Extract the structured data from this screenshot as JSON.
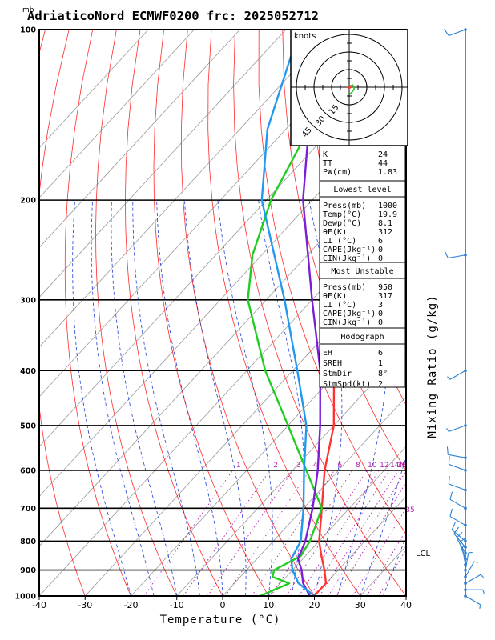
{
  "header": {
    "unit_mb": "mb",
    "title": "AdriaticoNord ECMWF0200 frc: 2025052712"
  },
  "axes": {
    "xlabel": "Temperature (°C)",
    "right_label": "Mixing Ratio (g/kg)",
    "pressure_ticks": [
      "100",
      "200",
      "300",
      "400",
      "500",
      "600",
      "700",
      "800",
      "900",
      "1000"
    ],
    "temp_ticks": [
      "-40",
      "-30",
      "-20",
      "-10",
      "0",
      "10",
      "20",
      "30",
      "40"
    ],
    "mixing_ratio_labels": [
      "1",
      "2",
      "3",
      "4",
      "6",
      "8",
      "10",
      "12",
      "14",
      "16",
      "18",
      "20",
      "25",
      "30",
      "35"
    ]
  },
  "hodograph": {
    "units": "knots",
    "ring_labels": [
      "15",
      "30",
      "45"
    ]
  },
  "indices": {
    "top": [
      {
        "label": "K",
        "value": "24"
      },
      {
        "label": "TT",
        "value": "44"
      },
      {
        "label": "PW(cm)",
        "value": "1.83"
      }
    ],
    "lowest": {
      "title": "Lowest level",
      "rows": [
        {
          "label": "Press(mb)",
          "value": "1000"
        },
        {
          "label": "Temp(°C)",
          "value": "19.9"
        },
        {
          "label": "Dewp(°C)",
          "value": "8.1"
        },
        {
          "label": "θE(K)",
          "value": "312"
        },
        {
          "label": "LI (°C)",
          "value": "6"
        },
        {
          "label": "CAPE(Jkg⁻¹)",
          "value": "0"
        },
        {
          "label": "CIN(Jkg⁻¹)",
          "value": "0"
        }
      ]
    },
    "unstable": {
      "title": "Most Unstable",
      "rows": [
        {
          "label": "Press(mb)",
          "value": "950"
        },
        {
          "label": "θE(K)",
          "value": "317"
        },
        {
          "label": "LI (°C)",
          "value": "3"
        },
        {
          "label": "CAPE(Jkg⁻¹)",
          "value": "0"
        },
        {
          "label": "CIN(Jkg⁻¹)",
          "value": "0"
        }
      ]
    },
    "hodo": {
      "title": "Hodograph",
      "rows": [
        {
          "label": "EH",
          "value": "6"
        },
        {
          "label": "SREH",
          "value": "1"
        },
        {
          "label": "StmDir",
          "value": "8°"
        },
        {
          "label": "StmSpd(kt)",
          "value": "2"
        }
      ]
    }
  },
  "lcl_label": "LCL",
  "colors": {
    "temperature": "#ff3333",
    "dewpoint": "#22cc22",
    "parcel": "#7a1fd6",
    "wetbulb": "#2299ee",
    "dry_adiabat": "#ff2a2a",
    "moist_adiabat": "#1f3fd6",
    "mixing_ratio": "#b020b0",
    "isotherm": "#999999"
  },
  "chart_data": {
    "type": "line",
    "title": "AdriaticoNord ECMWF0200 frc: 2025052712",
    "xlabel": "Temperature (°C)",
    "ylabel": "mb",
    "xlim": [
      -40,
      40
    ],
    "ylim": [
      1000,
      100
    ],
    "y_scale": "log",
    "series": [
      {
        "key": "temperature",
        "points": [
          [
            1000,
            19.9
          ],
          [
            950,
            20
          ],
          [
            900,
            17
          ],
          [
            850,
            13.5
          ],
          [
            800,
            10
          ],
          [
            700,
            4
          ],
          [
            600,
            -3
          ],
          [
            500,
            -10
          ],
          [
            400,
            -21
          ],
          [
            300,
            -33
          ],
          [
            250,
            -38
          ],
          [
            200,
            -45
          ],
          [
            150,
            -52
          ],
          [
            100,
            -59
          ]
        ]
      },
      {
        "key": "dewpoint",
        "points": [
          [
            1000,
            8.1
          ],
          [
            950,
            12
          ],
          [
            925,
            7
          ],
          [
            900,
            6
          ],
          [
            850,
            9
          ],
          [
            800,
            8
          ],
          [
            700,
            4
          ],
          [
            600,
            -7
          ],
          [
            500,
            -20
          ],
          [
            400,
            -36
          ],
          [
            300,
            -54
          ],
          [
            250,
            -62
          ],
          [
            200,
            -69
          ],
          [
            150,
            -75
          ],
          [
            100,
            -80
          ]
        ]
      },
      {
        "key": "parcel",
        "points": [
          [
            1000,
            19
          ],
          [
            950,
            15
          ],
          [
            900,
            12
          ],
          [
            860,
            9
          ],
          [
            800,
            7
          ],
          [
            700,
            2
          ],
          [
            600,
            -4.5
          ],
          [
            500,
            -13
          ],
          [
            400,
            -24
          ],
          [
            300,
            -40
          ],
          [
            200,
            -62
          ],
          [
            150,
            -75
          ],
          [
            100,
            -90
          ]
        ]
      },
      {
        "key": "wetbulb",
        "points": [
          [
            1000,
            20
          ],
          [
            950,
            14
          ],
          [
            900,
            10
          ],
          [
            860,
            7.5
          ],
          [
            800,
            6
          ],
          [
            700,
            0
          ],
          [
            600,
            -7.5
          ],
          [
            500,
            -16
          ],
          [
            400,
            -29
          ],
          [
            300,
            -46
          ],
          [
            200,
            -71
          ],
          [
            150,
            -84
          ],
          [
            100,
            -97
          ]
        ]
      }
    ],
    "wind_barbs": {
      "pressures": [
        100,
        250,
        400,
        500,
        570,
        600,
        650,
        700,
        750,
        800,
        820,
        840,
        860,
        880,
        900,
        925,
        950,
        975,
        1000
      ],
      "directions_deg": [
        250,
        260,
        240,
        250,
        280,
        290,
        290,
        300,
        300,
        310,
        320,
        330,
        340,
        350,
        10,
        30,
        60,
        90,
        120
      ],
      "speeds_kt": [
        10,
        10,
        5,
        5,
        10,
        10,
        10,
        10,
        10,
        10,
        10,
        10,
        10,
        5,
        5,
        5,
        5,
        5,
        5
      ]
    },
    "hodograph_points": [
      [
        0,
        0
      ],
      [
        0.4,
        -0.6
      ],
      [
        1.6,
        -1.0
      ],
      [
        2.2,
        0.8
      ],
      [
        1.4,
        2.0
      ],
      [
        0.2,
        3.2
      ]
    ]
  }
}
